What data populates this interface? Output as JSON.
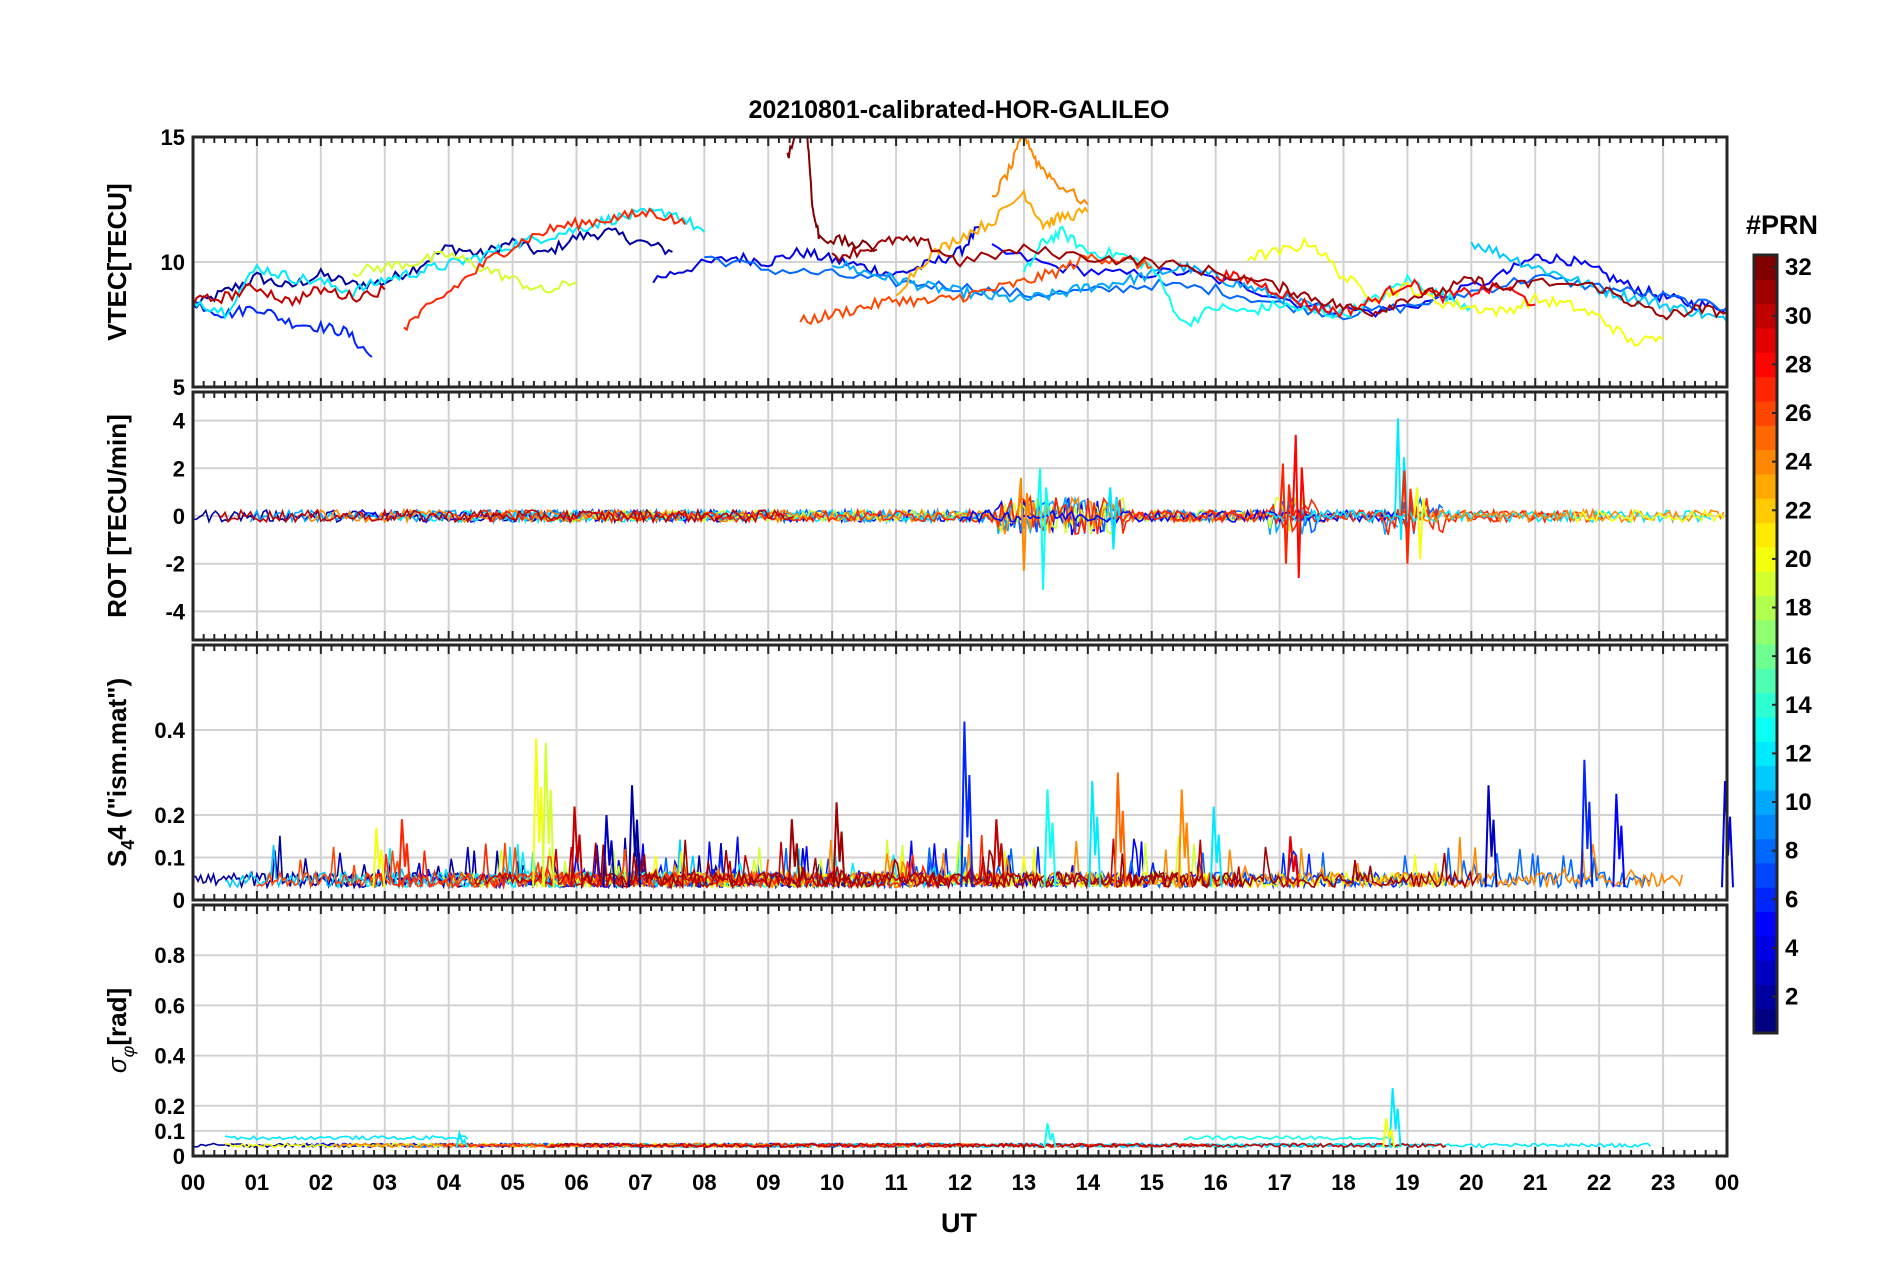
{
  "chart_data": {
    "type": "line",
    "title": "20210801-calibrated-HOR-GALILEO",
    "xlabel": "UT",
    "x_ticks": [
      "00",
      "01",
      "02",
      "03",
      "04",
      "05",
      "06",
      "07",
      "08",
      "09",
      "10",
      "11",
      "12",
      "13",
      "14",
      "15",
      "16",
      "17",
      "18",
      "19",
      "20",
      "21",
      "22",
      "23",
      "00"
    ],
    "xlim": [
      0,
      24
    ],
    "colorbar": {
      "title": "#PRN",
      "range": [
        1,
        32
      ],
      "ticks": [
        2,
        4,
        6,
        8,
        10,
        12,
        14,
        16,
        18,
        20,
        22,
        24,
        26,
        28,
        30,
        32
      ],
      "tick_labels": [
        "2",
        "4",
        "6",
        "8",
        "10",
        "12",
        "14",
        "16",
        "18",
        "20",
        "22",
        "24",
        "26",
        "28",
        "30",
        "32"
      ],
      "colormap": "jet"
    },
    "panels": [
      {
        "id": "vtec",
        "ylabel": "VTEC[TECU]",
        "ylim": [
          5,
          15
        ],
        "yticks": [
          5,
          10,
          15
        ],
        "ytick_labels": [
          "5",
          "10",
          "15"
        ],
        "series": [
          {
            "prn": 2,
            "x": [
              0,
              0.5,
              1,
              1.5,
              2,
              2.5,
              3,
              3.5,
              4,
              4.5,
              5,
              5.5,
              6,
              6.5,
              7,
              7.5
            ],
            "y": [
              8.2,
              8.8,
              9.4,
              9.0,
              9.5,
              9.1,
              9.2,
              9.8,
              10.6,
              10.3,
              10.8,
              10.3,
              11.0,
              11.2,
              10.8,
              10.4
            ]
          },
          {
            "prn": 4,
            "x": [
              7.2,
              7.8,
              8.5,
              9,
              9.5,
              10,
              10.5,
              11,
              11.5,
              12,
              12.3
            ],
            "y": [
              9.3,
              9.8,
              10.2,
              10.0,
              10.4,
              10.1,
              9.8,
              9.5,
              9.9,
              10.4,
              11.4
            ]
          },
          {
            "prn": 5,
            "x": [
              12.5,
              13.5,
              14.5,
              15.5,
              16.5,
              17.5,
              18.5,
              19.5,
              20.5,
              21,
              21.5,
              22,
              22.5,
              23,
              23.5,
              24
            ],
            "y": [
              10.5,
              9.8,
              9.5,
              9.6,
              9.0,
              8.2,
              8.0,
              8.5,
              9.5,
              10.2,
              10.1,
              9.6,
              9.0,
              8.6,
              8.3,
              8.2
            ]
          },
          {
            "prn": 6,
            "x": [
              0,
              0.5,
              1,
              1.5,
              2,
              2.4,
              2.8
            ],
            "y": [
              8.4,
              7.9,
              8.2,
              7.6,
              7.4,
              7.2,
              6.2
            ]
          },
          {
            "prn": 8,
            "x": [
              8,
              9,
              10,
              11,
              12,
              13,
              14,
              15,
              16,
              17,
              18,
              19,
              20,
              21,
              22,
              23,
              24
            ],
            "y": [
              10.2,
              9.7,
              9.5,
              9.2,
              9.0,
              8.7,
              8.8,
              9.1,
              8.9,
              8.3,
              7.9,
              8.2,
              8.8,
              9.4,
              9.0,
              8.6,
              8.1
            ]
          },
          {
            "prn": 10,
            "x": [
              10,
              10.5,
              11,
              11.5,
              12,
              12.5,
              13,
              13.5,
              14,
              14.5,
              15,
              15.5,
              16,
              16.5,
              17,
              17.5,
              18
            ],
            "y": [
              10.0,
              9.6,
              9.3,
              9.0,
              8.8,
              8.6,
              8.5,
              8.7,
              9.0,
              9.2,
              9.5,
              9.8,
              9.4,
              9.0,
              8.6,
              8.2,
              8.0
            ]
          },
          {
            "prn": 11,
            "x": [
              20,
              20.5,
              21,
              21.5,
              22,
              22.5,
              23,
              23.5,
              24
            ],
            "y": [
              10.8,
              10.3,
              9.8,
              9.4,
              8.9,
              8.6,
              8.3,
              8.0,
              7.6
            ]
          },
          {
            "prn": 12,
            "x": [
              0,
              0.5,
              1,
              1.5,
              2,
              2.5,
              3,
              3.5,
              4,
              4.5,
              5,
              5.5,
              6,
              6.5,
              7,
              7.5,
              8
            ],
            "y": [
              8.5,
              8.0,
              9.8,
              9.4,
              9.2,
              8.8,
              9.3,
              9.6,
              9.9,
              10.2,
              10.7,
              11.0,
              11.3,
              11.7,
              11.9,
              12.0,
              11.2
            ]
          },
          {
            "prn": 13,
            "x": [
              13,
              13.3,
              13.6,
              14,
              14.5,
              15,
              15.5,
              16,
              16.5,
              17,
              17.5,
              18,
              18.5,
              19,
              19.5,
              20
            ],
            "y": [
              9.5,
              10.8,
              11.2,
              10.4,
              10.3,
              9.8,
              7.5,
              8.2,
              8.0,
              8.3,
              8.0,
              7.9,
              8.5,
              9.3,
              8.7,
              8.2
            ]
          },
          {
            "prn": 19,
            "x": [
              2.5,
              3,
              3.5,
              4,
              4.5,
              5,
              5.5,
              6
            ],
            "y": [
              9.6,
              9.8,
              10.0,
              10.3,
              9.8,
              9.3,
              8.8,
              9.2
            ]
          },
          {
            "prn": 20,
            "x": [
              16.5,
              17,
              17.5,
              18,
              18.5,
              19,
              19.5,
              20,
              20.5,
              21,
              21.5,
              22,
              22.5,
              23
            ],
            "y": [
              10.2,
              10.4,
              10.8,
              9.4,
              8.6,
              9.0,
              8.4,
              8.2,
              8.0,
              8.5,
              8.3,
              7.8,
              6.8,
              6.9
            ]
          },
          {
            "prn": 23,
            "x": [
              11,
              11.5,
              12,
              12.5,
              13,
              13.3,
              13.6,
              14
            ],
            "y": [
              8.8,
              10.2,
              11.0,
              11.6,
              12.8,
              11.5,
              11.8,
              12.0
            ]
          },
          {
            "prn": 24,
            "x": [
              12.5,
              12.8,
              13,
              13.2,
              13.5,
              14
            ],
            "y": [
              12.5,
              13.8,
              15.2,
              14.0,
              13.2,
              12.3
            ]
          },
          {
            "prn": 26,
            "x": [
              9.5,
              10,
              10.5,
              11,
              11.5,
              12,
              12.5,
              13,
              13.5,
              14,
              14.5,
              15
            ],
            "y": [
              7.6,
              7.9,
              8.2,
              8.5,
              8.4,
              8.6,
              8.9,
              9.2,
              9.6,
              10.2,
              10.1,
              9.8
            ]
          },
          {
            "prn": 27,
            "x": [
              3.3,
              3.7,
              4.2,
              4.7,
              5.2,
              5.7,
              6.2,
              6.7,
              7.2,
              7.7
            ],
            "y": [
              7.4,
              8.2,
              9.2,
              10.2,
              10.9,
              11.4,
              11.6,
              11.8,
              12.0,
              11.5
            ]
          },
          {
            "prn": 28,
            "x": [
              16,
              16.5,
              17,
              17.5,
              18,
              18.5,
              19,
              19.5,
              20,
              20.5,
              21
            ],
            "y": [
              9.5,
              9.3,
              8.8,
              8.2,
              8.0,
              8.5,
              9.2,
              8.6,
              8.8,
              9.0,
              8.3
            ]
          },
          {
            "prn": 30,
            "x": [
              0,
              0.5,
              1,
              1.5,
              2,
              2.5,
              3
            ],
            "y": [
              8.4,
              8.6,
              9.0,
              8.4,
              8.9,
              8.6,
              8.9
            ]
          },
          {
            "prn": 31,
            "x": [
              10,
              10.5,
              11,
              11.5,
              12,
              13,
              14,
              15,
              16,
              17,
              17.5,
              18,
              18.5,
              19,
              19.5,
              20,
              20.5,
              21,
              22,
              22.5,
              23,
              23.5,
              24
            ],
            "y": [
              10.2,
              10.5,
              10.9,
              10.7,
              10.0,
              10.5,
              10.2,
              10.0,
              9.6,
              9.0,
              8.6,
              8.2,
              8.0,
              8.6,
              8.8,
              9.3,
              8.9,
              9.2,
              9.0,
              8.4,
              7.8,
              8.1,
              8.0
            ]
          },
          {
            "prn": 32,
            "x": [
              9.3,
              9.5,
              9.6,
              9.7,
              9.8,
              10.2,
              10.7
            ],
            "y": [
              14.2,
              15.5,
              15.5,
              12.0,
              11.0,
              10.8,
              10.5
            ]
          }
        ]
      },
      {
        "id": "rot",
        "ylabel": "ROT [TECU/min]",
        "ylim": [
          -5.2,
          5.2
        ],
        "yticks": [
          -4,
          -2,
          0,
          2,
          4
        ],
        "ytick_labels": [
          "-4",
          "-2",
          "0",
          "2",
          "4"
        ],
        "spikes": [
          {
            "prn": 24,
            "x": 13.0,
            "y": [
              -2.3,
              1.6
            ]
          },
          {
            "prn": 13,
            "x": 13.3,
            "y": [
              -3.1,
              2.0
            ]
          },
          {
            "prn": 12,
            "x": 14.4,
            "y": [
              -1.4,
              1.2
            ]
          },
          {
            "prn": 28,
            "x": 17.3,
            "y": [
              -2.6,
              3.4
            ]
          },
          {
            "prn": 27,
            "x": 17.1,
            "y": [
              -2.0,
              2.2
            ]
          },
          {
            "prn": 12,
            "x": 18.9,
            "y": [
              -1.0,
              4.1
            ]
          },
          {
            "prn": 27,
            "x": 19.0,
            "y": [
              -2.0,
              1.9
            ]
          },
          {
            "prn": 20,
            "x": 19.2,
            "y": [
              -1.8,
              1.2
            ]
          }
        ]
      },
      {
        "id": "s4",
        "ylabel": "S4 (\"ism.mat\")",
        "ylim": [
          0,
          0.6
        ],
        "yticks": [
          0,
          0.1,
          0.2,
          0.4
        ],
        "ytick_labels": [
          "0",
          "0.1",
          "0.2",
          "0.4"
        ],
        "spikes": [
          {
            "prn": 20,
            "x": 2.9,
            "y": 0.17
          },
          {
            "prn": 27,
            "x": 3.3,
            "y": 0.19
          },
          {
            "prn": 20,
            "x": 5.4,
            "y": 0.38
          },
          {
            "prn": 19,
            "x": 5.55,
            "y": 0.37
          },
          {
            "prn": 30,
            "x": 6.0,
            "y": 0.22
          },
          {
            "prn": 2,
            "x": 6.9,
            "y": 0.27
          },
          {
            "prn": 3,
            "x": 6.5,
            "y": 0.2
          },
          {
            "prn": 31,
            "x": 9.4,
            "y": 0.19
          },
          {
            "prn": 31,
            "x": 10.1,
            "y": 0.23
          },
          {
            "prn": 6,
            "x": 12.1,
            "y": 0.42
          },
          {
            "prn": 30,
            "x": 12.6,
            "y": 0.19
          },
          {
            "prn": 13,
            "x": 13.4,
            "y": 0.26
          },
          {
            "prn": 12,
            "x": 14.1,
            "y": 0.28
          },
          {
            "prn": 25,
            "x": 14.5,
            "y": 0.3
          },
          {
            "prn": 24,
            "x": 15.5,
            "y": 0.26
          },
          {
            "prn": 12,
            "x": 16.0,
            "y": 0.22
          },
          {
            "prn": 29,
            "x": 17.2,
            "y": 0.15
          },
          {
            "prn": 3,
            "x": 20.3,
            "y": 0.27
          },
          {
            "prn": 6,
            "x": 21.8,
            "y": 0.33
          },
          {
            "prn": 5,
            "x": 22.3,
            "y": 0.25
          },
          {
            "prn": 4,
            "x": 24.0,
            "y": 0.28
          }
        ]
      },
      {
        "id": "sigma",
        "ylabel": "σφ[rad]",
        "ylim": [
          0,
          1.0
        ],
        "yticks": [
          0,
          0.1,
          0.2,
          0.4,
          0.6,
          0.8
        ],
        "ytick_labels": [
          "0",
          "0.1",
          "0.2",
          "0.4",
          "0.6",
          "0.8"
        ],
        "spikes": [
          {
            "prn": 12,
            "x": 18.8,
            "y": 0.27
          },
          {
            "prn": 20,
            "x": 18.7,
            "y": 0.15
          },
          {
            "prn": 13,
            "x": 13.4,
            "y": 0.13
          },
          {
            "prn": 12,
            "x": 4.2,
            "y": 0.09
          }
        ]
      }
    ]
  }
}
